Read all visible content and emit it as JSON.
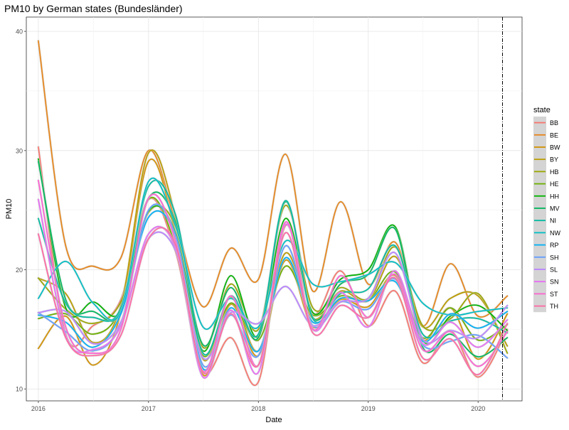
{
  "chart_data": {
    "type": "line",
    "title": "PM10 by German states (Bundesländer)",
    "xlabel": "Date",
    "ylabel": "PM10",
    "x_ticks": [
      "2016",
      "2017",
      "2018",
      "2019",
      "2020"
    ],
    "y_ticks": [
      10,
      20,
      30,
      40
    ],
    "xlim": [
      "2015-11-22",
      "2020-05-26"
    ],
    "ylim": [
      9.0,
      41.2
    ],
    "grid": true,
    "reference_line_x": "2020-03-22",
    "legend_title": "state",
    "legend_position": "right",
    "x": [
      "2016-01-01",
      "2016-04-01",
      "2016-07-01",
      "2016-10-01",
      "2017-01-01",
      "2017-04-01",
      "2017-07-01",
      "2017-10-01",
      "2018-01-01",
      "2018-04-01",
      "2018-07-01",
      "2018-10-01",
      "2019-01-01",
      "2019-04-01",
      "2019-07-01",
      "2019-10-01",
      "2020-01-01",
      "2020-04-07"
    ],
    "series": [
      {
        "name": "BB",
        "color": "#F8766D",
        "values": [
          30.3,
          14.6,
          15.3,
          17.5,
          25.9,
          21.5,
          11.5,
          14.3,
          10.6,
          23.7,
          16.3,
          19.9,
          15.3,
          18.2,
          12.2,
          14.9,
          11.0,
          15.0
        ]
      },
      {
        "name": "BE",
        "color": "#E7861B",
        "values": [
          39.2,
          22.0,
          20.3,
          21.0,
          30.0,
          24.0,
          16.9,
          21.8,
          19.2,
          29.7,
          18.2,
          25.7,
          18.8,
          22.3,
          15.3,
          20.5,
          16.1,
          17.8
        ]
      },
      {
        "name": "BW",
        "color": "#D39200",
        "values": [
          13.4,
          16.1,
          12.0,
          16.4,
          29.1,
          23.0,
          11.2,
          17.1,
          12.8,
          20.8,
          15.2,
          17.5,
          16.9,
          19.5,
          14.1,
          16.8,
          12.5,
          16.3
        ]
      },
      {
        "name": "BY",
        "color": "#BB9D00",
        "values": [
          19.3,
          18.0,
          13.9,
          17.0,
          29.8,
          24.4,
          12.5,
          17.7,
          13.2,
          21.4,
          15.9,
          18.2,
          17.4,
          21.1,
          15.2,
          17.6,
          17.8,
          13.6
        ]
      },
      {
        "name": "HB",
        "color": "#9CA700",
        "values": [
          19.3,
          16.7,
          15.5,
          17.3,
          24.8,
          23.6,
          13.5,
          18.8,
          15.0,
          25.4,
          16.8,
          18.5,
          17.6,
          21.9,
          15.3,
          15.9,
          18.0,
          13.0
        ]
      },
      {
        "name": "HE",
        "color": "#6DB000",
        "values": [
          15.9,
          16.3,
          14.6,
          16.8,
          25.9,
          22.0,
          12.8,
          17.2,
          14.1,
          20.3,
          16.2,
          17.8,
          17.4,
          19.8,
          14.3,
          16.8,
          14.1,
          15.4
        ]
      },
      {
        "name": "HH",
        "color": "#00B400",
        "values": [
          29.3,
          16.8,
          17.3,
          16.5,
          24.9,
          23.1,
          13.2,
          19.5,
          14.4,
          24.3,
          16.4,
          19.2,
          20.0,
          23.6,
          14.1,
          16.1,
          17.0,
          14.9
        ]
      },
      {
        "name": "MV",
        "color": "#00B85C",
        "values": [
          29.1,
          17.5,
          16.5,
          16.4,
          26.0,
          24.0,
          13.7,
          18.5,
          14.3,
          25.7,
          16.0,
          18.8,
          19.6,
          23.4,
          13.5,
          14.6,
          12.7,
          14.3
        ]
      },
      {
        "name": "NI",
        "color": "#00BBA0",
        "values": [
          24.3,
          17.2,
          16.0,
          16.8,
          27.0,
          24.6,
          13.0,
          17.8,
          14.6,
          25.8,
          15.9,
          18.0,
          18.4,
          22.0,
          14.6,
          15.7,
          15.9,
          14.7
        ]
      },
      {
        "name": "NW",
        "color": "#00BFC4",
        "values": [
          17.6,
          20.7,
          17.2,
          16.5,
          27.4,
          23.7,
          15.2,
          17.6,
          15.2,
          22.4,
          18.8,
          19.0,
          19.6,
          20.6,
          17.2,
          16.2,
          16.5,
          16.8
        ]
      },
      {
        "name": "RP",
        "color": "#00B0F6",
        "values": [
          16.2,
          15.6,
          13.5,
          16.3,
          24.4,
          22.8,
          11.7,
          16.8,
          13.2,
          21.0,
          15.6,
          17.6,
          17.4,
          19.0,
          14.0,
          16.3,
          15.1,
          16.5
        ]
      },
      {
        "name": "SH",
        "color": "#619CFF",
        "values": [
          16.4,
          14.8,
          13.2,
          15.5,
          25.0,
          22.9,
          12.0,
          16.2,
          12.8,
          22.0,
          15.3,
          17.3,
          16.7,
          19.2,
          13.7,
          14.0,
          14.5,
          12.6
        ]
      },
      {
        "name": "SL",
        "color": "#B983FF",
        "values": [
          16.4,
          16.5,
          13.8,
          15.6,
          22.6,
          21.6,
          12.6,
          16.4,
          15.5,
          18.6,
          15.3,
          17.3,
          17.6,
          21.4,
          14.2,
          14.9,
          14.3,
          17.0
        ]
      },
      {
        "name": "SN",
        "color": "#E76BF3",
        "values": [
          25.9,
          14.5,
          13.3,
          15.3,
          23.0,
          21.8,
          11.0,
          16.6,
          11.4,
          23.8,
          15.0,
          18.1,
          15.2,
          19.9,
          13.8,
          15.6,
          13.5,
          15.8
        ]
      },
      {
        "name": "ST",
        "color": "#FD61D1",
        "values": [
          27.5,
          15.2,
          13.0,
          15.0,
          26.0,
          22.4,
          11.5,
          17.8,
          12.0,
          24.0,
          15.0,
          19.5,
          16.0,
          19.6,
          13.3,
          14.8,
          11.9,
          14.8
        ]
      },
      {
        "name": "TH",
        "color": "#FF67A4",
        "values": [
          23.0,
          14.3,
          12.8,
          14.5,
          22.6,
          22.1,
          11.4,
          16.3,
          12.0,
          23.1,
          14.7,
          17.0,
          16.0,
          19.3,
          12.6,
          14.2,
          11.2,
          15.5
        ]
      }
    ]
  }
}
